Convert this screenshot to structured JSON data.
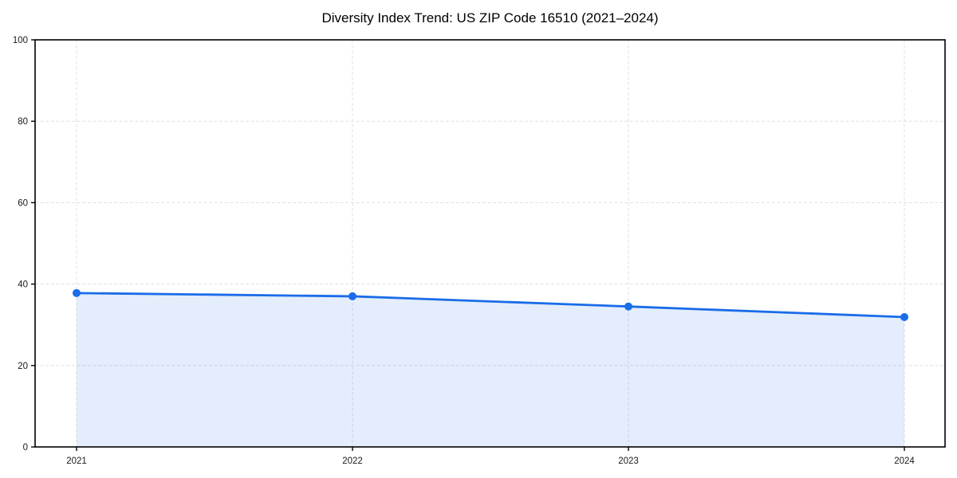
{
  "chart": {
    "title": "Diversity Index Trend: US ZIP Code 16510 (2021–2024)"
  },
  "chart_data": {
    "type": "area",
    "title": "Diversity Index Trend: US ZIP Code 16510 (2021–2024)",
    "categories": [
      "2021",
      "2022",
      "2023",
      "2024"
    ],
    "x": [
      2021,
      2022,
      2023,
      2024
    ],
    "series": [
      {
        "name": "Diversity Index",
        "values": [
          37.8,
          37.0,
          34.5,
          31.9
        ]
      }
    ],
    "xlabel": "",
    "ylabel": "",
    "ylim": [
      0,
      100
    ],
    "yticks": [
      0,
      20,
      40,
      60,
      80,
      100
    ],
    "grid": {
      "style": "dashed",
      "horizontal": true,
      "vertical": true
    },
    "legend": "none",
    "colors": {
      "line": "#1a6ce8",
      "marker": "#1a6ce8",
      "fill": "#1a6ce8",
      "fill_opacity": 0.12,
      "grid": "#e3e3e3",
      "spine": "#000000",
      "text": "#1a1a1a",
      "background": "#ffffff"
    }
  }
}
